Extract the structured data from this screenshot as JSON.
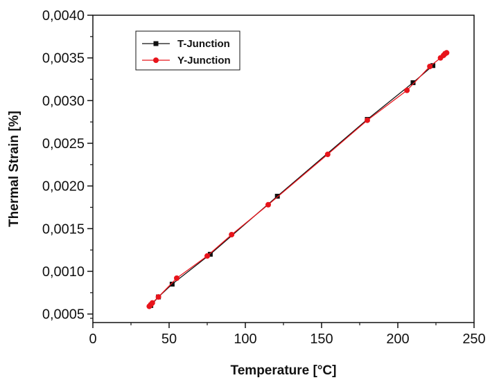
{
  "chart_data": {
    "type": "line",
    "title": "",
    "xlabel": "Temperature [°C]",
    "ylabel": "Thermal Strain [%]",
    "xlim": [
      0,
      250
    ],
    "ylim": [
      0.0004,
      0.004
    ],
    "x_ticks": [
      0,
      50,
      100,
      150,
      200,
      250
    ],
    "x_tick_labels": [
      "0",
      "50",
      "100",
      "150",
      "200",
      "250"
    ],
    "y_ticks": [
      0.0005,
      0.001,
      0.0015,
      0.002,
      0.0025,
      0.003,
      0.0035,
      0.004
    ],
    "y_tick_labels": [
      "0,0005",
      "0,0010",
      "0,0015",
      "0,0020",
      "0,0025",
      "0,0030",
      "0,0035",
      "0,0040"
    ],
    "grid": false,
    "legend_position": "top-left",
    "series": [
      {
        "name": "T-Junction",
        "color": "#111111",
        "marker": "square",
        "x": [
          38,
          43,
          52,
          77,
          121,
          180,
          210,
          223
        ],
        "y": [
          0.0006,
          0.0007,
          0.00085,
          0.0012,
          0.00188,
          0.00278,
          0.00321,
          0.00341
        ]
      },
      {
        "name": "Y-Junction",
        "color": "#e8141b",
        "marker": "circle",
        "x": [
          37,
          38,
          39,
          43,
          55,
          75,
          91,
          115,
          154,
          180,
          206,
          221,
          228,
          230,
          231,
          232
        ],
        "y": [
          0.00059,
          0.00061,
          0.00063,
          0.0007,
          0.00092,
          0.00118,
          0.00143,
          0.00178,
          0.00237,
          0.00277,
          0.00312,
          0.0034,
          0.0035,
          0.00353,
          0.00355,
          0.00356
        ]
      }
    ]
  }
}
